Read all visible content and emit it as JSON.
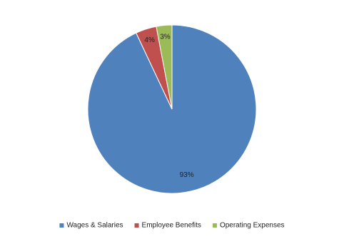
{
  "chart_data": {
    "type": "pie",
    "categories": [
      "Wages & Salaries",
      "Employee Benefits",
      "Operating Expenses"
    ],
    "values": [
      93,
      4,
      3
    ],
    "value_labels": [
      "93%",
      "4%",
      "3%"
    ],
    "colors": [
      "#4f81bd",
      "#c0504d",
      "#9bbb59"
    ],
    "legend": "bottom"
  }
}
